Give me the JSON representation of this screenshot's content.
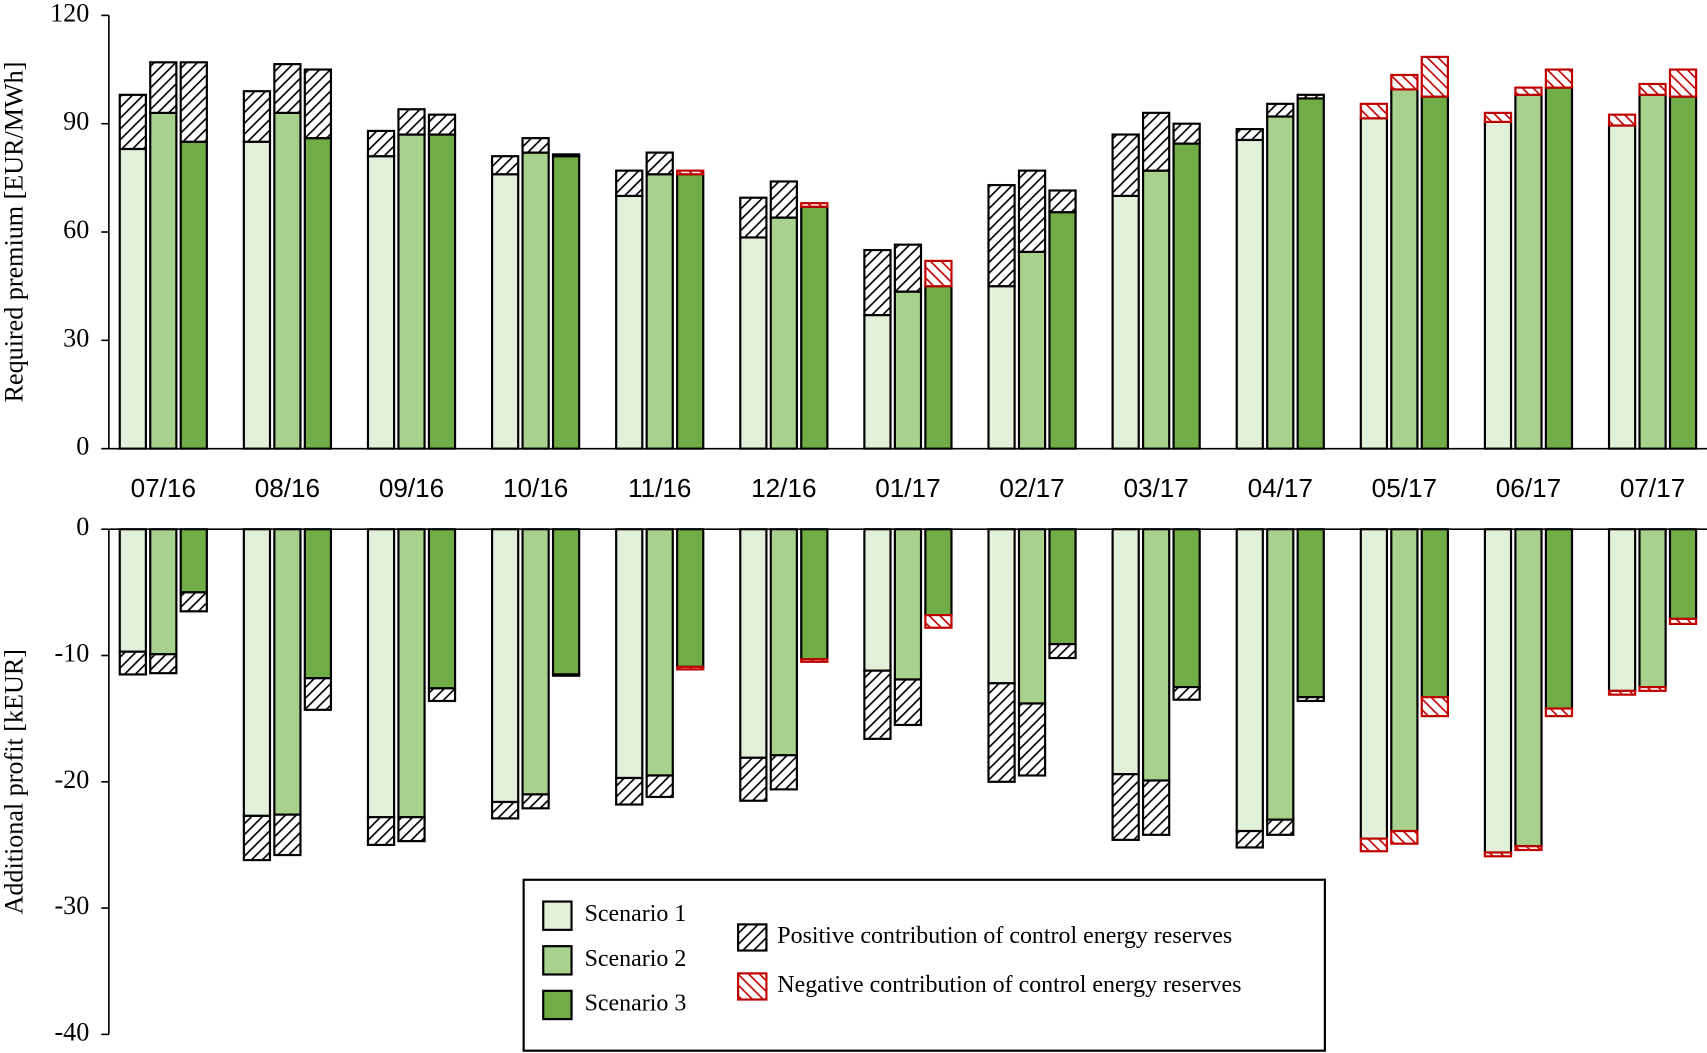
{
  "chart_data": [
    {
      "type": "bar",
      "ylabel": "Required premium [EUR/MWh]",
      "categories": [
        "07/16",
        "08/16",
        "09/16",
        "10/16",
        "11/16",
        "12/16",
        "01/17",
        "02/17",
        "03/17",
        "04/17",
        "05/17",
        "06/17",
        "07/17"
      ],
      "ylim": [
        0,
        120
      ],
      "yticks": [
        0,
        30,
        60,
        90,
        120
      ],
      "contributions": [
        {
          "name": "Positive contribution of control energy reserves",
          "color": "#000000"
        },
        {
          "name": "Negative contribution of control energy reserves",
          "color": "#c00000"
        }
      ],
      "series": [
        {
          "name": "Scenario 1",
          "color": "#e2f0d9",
          "values": [
            83,
            85,
            81,
            76,
            70,
            58.5,
            37,
            45,
            70,
            85.5,
            91.5,
            90.5,
            89.5
          ],
          "positive": [
            15,
            14,
            7,
            5,
            7,
            11,
            18,
            28,
            17,
            3,
            null,
            null,
            null
          ],
          "negative": [
            null,
            null,
            null,
            null,
            null,
            null,
            null,
            null,
            null,
            null,
            4,
            2.5,
            3
          ]
        },
        {
          "name": "Scenario 2",
          "color": "#a9d18e",
          "values": [
            93,
            93,
            87,
            82,
            76,
            64,
            43.5,
            54.5,
            77,
            92,
            99.5,
            98,
            98
          ],
          "positive": [
            14,
            13.5,
            7,
            4,
            6,
            10,
            13,
            22.5,
            16,
            3.5,
            null,
            null,
            null
          ],
          "negative": [
            null,
            null,
            null,
            null,
            null,
            null,
            null,
            null,
            null,
            null,
            4,
            2,
            3
          ]
        },
        {
          "name": "Scenario 3",
          "color": "#70ad47",
          "values": [
            85,
            86,
            87,
            81,
            76,
            67,
            45,
            65.5,
            84.5,
            97,
            97.5,
            100,
            97.5
          ],
          "positive": [
            22,
            19,
            5.5,
            0.5,
            null,
            null,
            null,
            6,
            5.5,
            1,
            null,
            null,
            null
          ],
          "negative": [
            null,
            null,
            null,
            null,
            1,
            1,
            7,
            null,
            null,
            null,
            11,
            5,
            7.5
          ]
        }
      ]
    },
    {
      "type": "bar",
      "ylabel": "Additional profit [kEUR]",
      "ylim": [
        -40,
        0
      ],
      "yticks": [
        -40,
        -30,
        -20,
        -10,
        0
      ],
      "series": [
        {
          "color": "#e2f0d9",
          "values": [
            -9.7,
            -22.7,
            -22.8,
            -21.6,
            -19.7,
            -18.1,
            -11.2,
            -12.2,
            -19.4,
            -23.9,
            -24.5,
            -25.6,
            -12.8
          ],
          "positive": [
            -1.8,
            -3.5,
            -2.2,
            -1.3,
            -2.1,
            -3.4,
            -5.4,
            -7.8,
            -5.2,
            -1.3,
            null,
            null,
            null
          ],
          "negative": [
            null,
            null,
            null,
            null,
            null,
            null,
            null,
            null,
            null,
            null,
            -1,
            -0.3,
            -0.3
          ]
        },
        {
          "color": "#a9d18e",
          "values": [
            -9.9,
            -22.6,
            -22.8,
            -21,
            -19.5,
            -17.9,
            -11.9,
            -13.8,
            -19.9,
            -23,
            -23.9,
            -25.1,
            -12.5
          ],
          "positive": [
            -1.5,
            -3.2,
            -1.9,
            -1.1,
            -1.7,
            -2.7,
            -3.6,
            -5.7,
            -4.3,
            -1.2,
            null,
            null,
            null
          ],
          "negative": [
            null,
            null,
            null,
            null,
            null,
            null,
            null,
            null,
            null,
            null,
            -1,
            -0.3,
            -0.3
          ]
        },
        {
          "color": "#70ad47",
          "values": [
            -5,
            -11.8,
            -12.6,
            -11.5,
            -10.9,
            -10.3,
            -6.8,
            -9.1,
            -12.5,
            -13.3,
            -13.3,
            -14.2,
            -7.1
          ],
          "positive": [
            -1.5,
            -2.5,
            -1,
            -0.1,
            null,
            null,
            null,
            -1.1,
            -1,
            -0.3,
            null,
            null,
            null
          ],
          "negative": [
            null,
            null,
            null,
            null,
            -0.2,
            -0.2,
            -1,
            null,
            null,
            null,
            -1.5,
            -0.6,
            -0.4
          ]
        }
      ]
    }
  ]
}
